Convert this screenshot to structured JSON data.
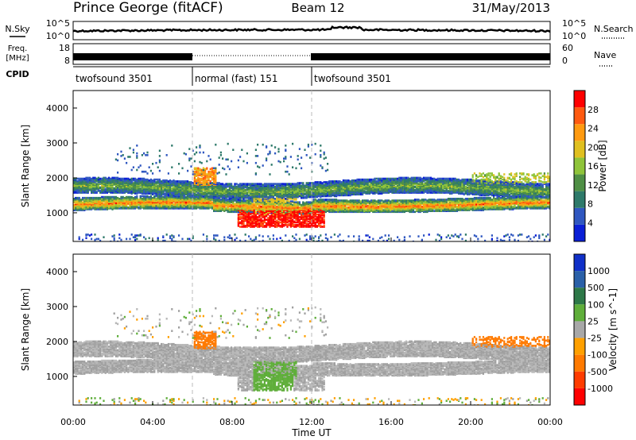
{
  "header": {
    "station": "Prince George (fitACF)",
    "beam": "Beam 12",
    "date": "31/May/2013"
  },
  "noise_panel": {
    "left_label": "N.Sky",
    "left_ticks": [
      "10^5",
      "10^0"
    ],
    "right_label": "N.Search",
    "right_ticks": [
      "10^5",
      "10^0"
    ]
  },
  "freq_panel": {
    "left_label_1": "Freq.",
    "left_label_2": "[MHz]",
    "left_ticks": [
      "18",
      "8"
    ],
    "right_label": "Nave",
    "right_ticks": [
      "60",
      "0"
    ]
  },
  "cpid": {
    "label": "CPID",
    "segments": [
      {
        "name": "twofsound 3501",
        "start_hour": 0,
        "end_hour": 6
      },
      {
        "name": "normal (fast) 151",
        "start_hour": 6,
        "end_hour": 12
      },
      {
        "name": "twofsound 3501",
        "start_hour": 12,
        "end_hour": 24
      }
    ]
  },
  "time_axis": {
    "label": "Time UT",
    "ticks": [
      "00:00",
      "04:00",
      "08:00",
      "12:00",
      "16:00",
      "20:00",
      "00:00"
    ]
  },
  "colors": {
    "power": [
      "#0a1fd6",
      "#2f57c0",
      "#2e7a6a",
      "#4f8f45",
      "#8fc43a",
      "#e0c020",
      "#ff9a10",
      "#ff5a10",
      "#ff0000"
    ],
    "velocity": [
      "#1030c8",
      "#2a60a8",
      "#2d7848",
      "#5fae3a",
      "#a8a8a8",
      "#ffa000",
      "#ff7a00",
      "#ff3c00",
      "#ff0000"
    ]
  },
  "chart_data": [
    {
      "type": "heatmap",
      "title": "",
      "xlabel": "Time UT",
      "ylabel": "Slant Range [km]",
      "xlim": [
        0,
        24
      ],
      "ylim": [
        180,
        4500
      ],
      "yticks": [
        "1000",
        "2000",
        "3000",
        "4000"
      ],
      "colorbar": {
        "label": "Power [dB]",
        "ticks": [
          "4",
          "8",
          "12",
          "16",
          "20",
          "24",
          "28"
        ]
      },
      "echo_bands": [
        {
          "description_km": [
            1100,
            1400
          ],
          "t_start": 0,
          "t_end": 24,
          "peak_power_db": 24
        },
        {
          "description_km": [
            1500,
            1900
          ],
          "t_start": 0,
          "t_end": 24,
          "peak_power_db": 16
        },
        {
          "description_km": [
            600,
            1200
          ],
          "t_start": 8,
          "t_end": 12.5,
          "peak_power_db": 30
        }
      ]
    },
    {
      "type": "heatmap",
      "title": "",
      "xlabel": "Time UT",
      "ylabel": "Slant Range [km]",
      "xlim": [
        0,
        24
      ],
      "ylim": [
        180,
        4500
      ],
      "yticks": [
        "1000",
        "2000",
        "3000",
        "4000"
      ],
      "colorbar": {
        "label": "Velocity [m s^-1]",
        "ticks": [
          "1000",
          "500",
          "100",
          "25",
          "-25",
          "-100",
          "-500",
          "-1000"
        ]
      }
    }
  ]
}
